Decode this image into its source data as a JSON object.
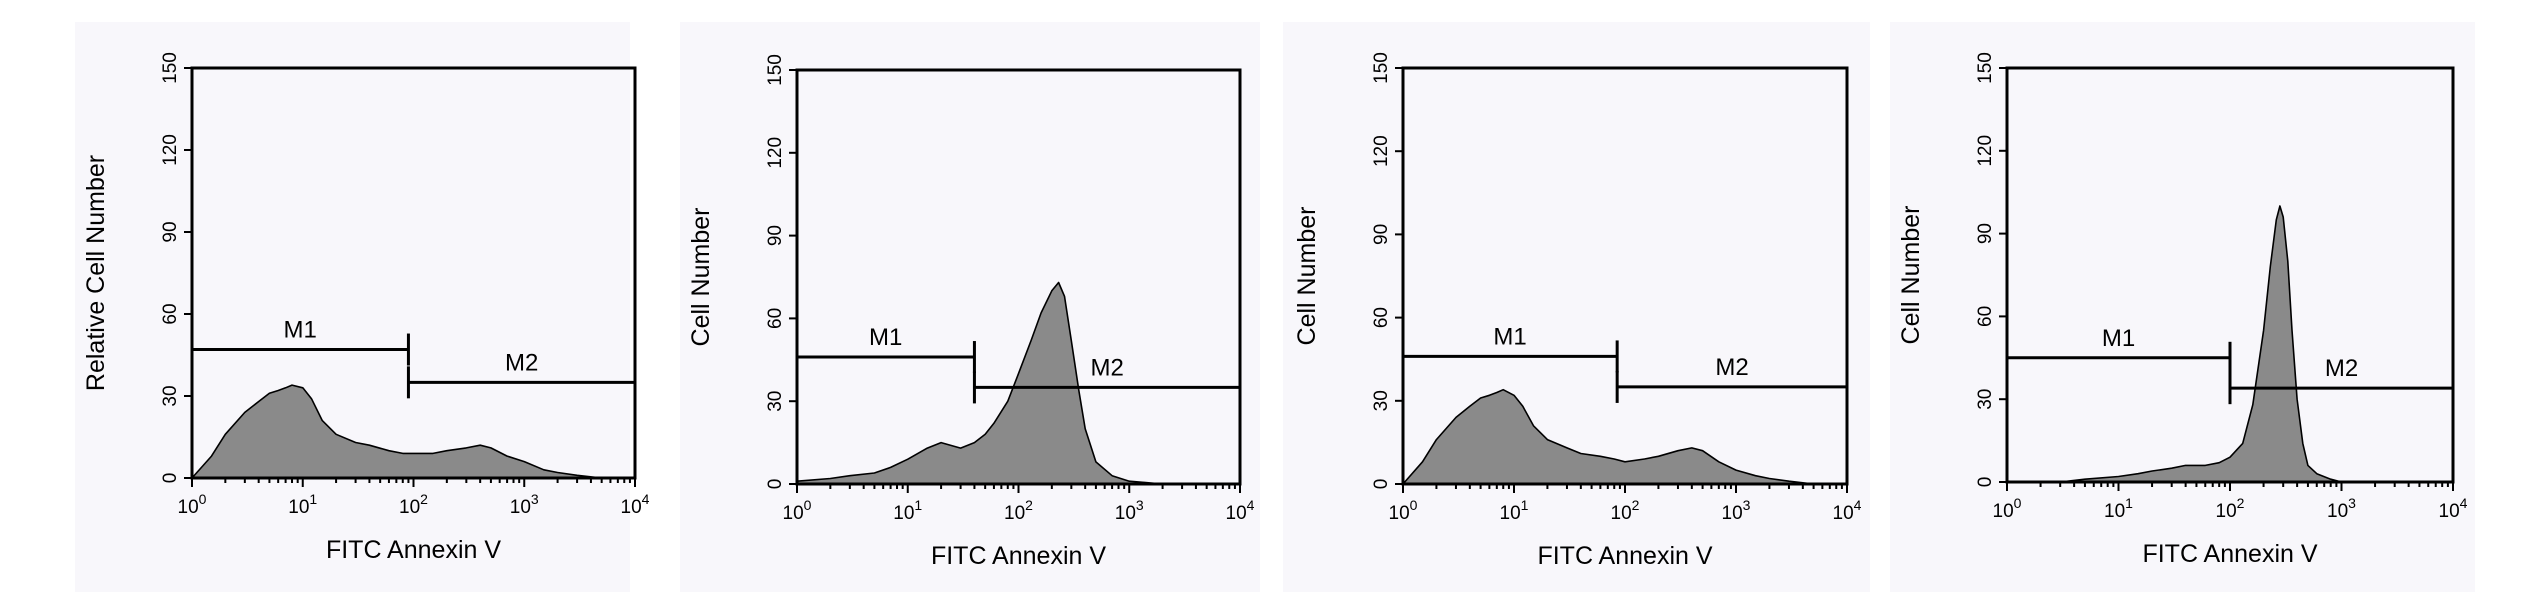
{
  "chart_data": [
    {
      "type": "area",
      "xlabel": "FITC Annexin V",
      "ylabel": "Relative Cell Number",
      "xscale": "log",
      "xlim": [
        1,
        10000
      ],
      "ylim": [
        0,
        150
      ],
      "grid": false,
      "x_ticks": [
        "10^0",
        "10^1",
        "10^2",
        "10^3",
        "10^4"
      ],
      "y_ticks": [
        "0",
        "30",
        "60",
        "90",
        "120",
        "150"
      ],
      "series": [
        {
          "x": [
            1,
            1.5,
            2,
            3,
            4,
            5,
            6,
            7,
            8,
            10,
            12,
            15,
            20,
            30,
            40,
            60,
            80,
            100,
            150,
            200,
            300,
            400,
            500,
            700,
            1000,
            1500,
            2000,
            3000,
            5000,
            10000
          ],
          "values": [
            0,
            8,
            16,
            24,
            28,
            31,
            32,
            33,
            34,
            33,
            29,
            21,
            16,
            13,
            12,
            10,
            9,
            9,
            9,
            10,
            11,
            12,
            11,
            8,
            6,
            3,
            2,
            1,
            0,
            0
          ]
        }
      ],
      "markers": [
        {
          "label": "M1",
          "from": 1,
          "to": 90,
          "y": 47
        },
        {
          "label": "M2",
          "from": 90,
          "to": 10000,
          "y": 35
        }
      ]
    },
    {
      "type": "area",
      "xlabel": "FITC Annexin V",
      "ylabel": "Cell Number",
      "xscale": "log",
      "xlim": [
        1,
        10000
      ],
      "ylim": [
        0,
        150
      ],
      "grid": false,
      "x_ticks": [
        "10^0",
        "10^1",
        "10^2",
        "10^3",
        "10^4"
      ],
      "y_ticks": [
        "0",
        "30",
        "60",
        "90",
        "120",
        "150"
      ],
      "series": [
        {
          "x": [
            1,
            2,
            3,
            5,
            7,
            10,
            15,
            20,
            30,
            40,
            50,
            60,
            80,
            100,
            130,
            160,
            200,
            230,
            260,
            300,
            350,
            400,
            500,
            700,
            1000,
            2000,
            5000,
            10000
          ],
          "values": [
            1,
            2,
            3,
            4,
            6,
            9,
            13,
            15,
            13,
            15,
            18,
            22,
            30,
            40,
            52,
            62,
            70,
            73,
            68,
            52,
            34,
            20,
            8,
            3,
            1,
            0,
            0,
            0
          ]
        }
      ],
      "markers": [
        {
          "label": "M1",
          "from": 1,
          "to": 40,
          "y": 46
        },
        {
          "label": "M2",
          "from": 40,
          "to": 10000,
          "y": 35
        }
      ]
    },
    {
      "type": "area",
      "xlabel": "FITC Annexin V",
      "ylabel": "Cell Number",
      "xscale": "log",
      "xlim": [
        1,
        10000
      ],
      "ylim": [
        0,
        150
      ],
      "grid": false,
      "x_ticks": [
        "10^0",
        "10^1",
        "10^2",
        "10^3",
        "10^4"
      ],
      "y_ticks": [
        "0",
        "30",
        "60",
        "90",
        "120",
        "150"
      ],
      "series": [
        {
          "x": [
            1,
            1.5,
            2,
            3,
            4,
            5,
            6,
            7,
            8,
            10,
            12,
            15,
            20,
            30,
            40,
            60,
            80,
            100,
            150,
            200,
            300,
            400,
            500,
            700,
            1000,
            1500,
            2000,
            3000,
            5000,
            10000
          ],
          "values": [
            0,
            8,
            16,
            24,
            28,
            31,
            32,
            33,
            34,
            32,
            28,
            21,
            16,
            13,
            11,
            10,
            9,
            8,
            9,
            10,
            12,
            13,
            12,
            8,
            5,
            3,
            2,
            1,
            0,
            0
          ]
        }
      ],
      "markers": [
        {
          "label": "M1",
          "from": 1,
          "to": 85,
          "y": 46
        },
        {
          "label": "M2",
          "from": 85,
          "to": 10000,
          "y": 35
        }
      ]
    },
    {
      "type": "area",
      "xlabel": "FITC Annexin V",
      "ylabel": "Cell Number",
      "xscale": "log",
      "xlim": [
        1,
        10000
      ],
      "ylim": [
        0,
        150
      ],
      "grid": false,
      "x_ticks": [
        "10^0",
        "10^1",
        "10^2",
        "10^3",
        "10^4"
      ],
      "y_ticks": [
        "0",
        "30",
        "60",
        "90",
        "120",
        "150"
      ],
      "series": [
        {
          "x": [
            1,
            3,
            5,
            10,
            15,
            20,
            30,
            40,
            60,
            80,
            100,
            130,
            160,
            200,
            230,
            260,
            280,
            300,
            330,
            360,
            400,
            450,
            500,
            600,
            800,
            1000,
            2000,
            5000,
            10000
          ],
          "values": [
            0,
            0,
            1,
            2,
            3,
            4,
            5,
            6,
            6,
            7,
            9,
            14,
            28,
            55,
            78,
            95,
            100,
            96,
            80,
            55,
            30,
            14,
            6,
            3,
            1,
            0,
            0,
            0,
            0
          ]
        }
      ],
      "markers": [
        {
          "label": "M1",
          "from": 1,
          "to": 100,
          "y": 45
        },
        {
          "label": "M2",
          "from": 100,
          "to": 10000,
          "y": 34
        }
      ]
    }
  ]
}
